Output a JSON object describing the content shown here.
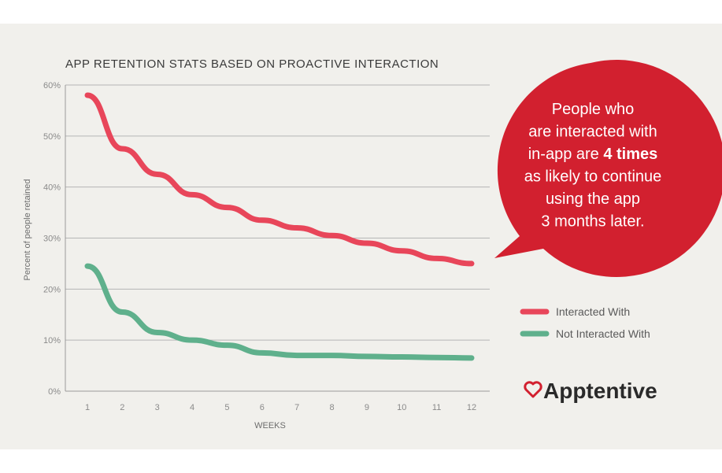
{
  "chart_data": {
    "type": "line",
    "title": "APP RETENTION STATS BASED ON PROACTIVE INTERACTION",
    "xlabel": "WEEKS",
    "ylabel": "Percent of people retained",
    "x": [
      1,
      2,
      3,
      4,
      5,
      6,
      7,
      8,
      9,
      10,
      11,
      12
    ],
    "ylim": [
      0,
      60
    ],
    "yticks": [
      "0%",
      "10%",
      "20%",
      "30%",
      "40%",
      "50%",
      "60%"
    ],
    "grid": true,
    "legend_position": "right",
    "series": [
      {
        "name": "Interacted With",
        "color": "#e8465a",
        "values": [
          58,
          47.5,
          42.5,
          38.5,
          36,
          33.5,
          32,
          30.5,
          29,
          27.5,
          26,
          25
        ]
      },
      {
        "name": "Not Interacted With",
        "color": "#5fb08c",
        "values": [
          24.5,
          15.5,
          11.5,
          10,
          9,
          7.5,
          7,
          7,
          6.8,
          6.7,
          6.6,
          6.5
        ]
      }
    ]
  },
  "callout": {
    "lines": [
      {
        "pre": "People who",
        "bold": "",
        "post": ""
      },
      {
        "pre": "are interacted with",
        "bold": "",
        "post": ""
      },
      {
        "pre": "in-app are ",
        "bold": "4 times",
        "post": ""
      },
      {
        "pre": "as likely to continue",
        "bold": "",
        "post": ""
      },
      {
        "pre": "using the app",
        "bold": "",
        "post": ""
      },
      {
        "pre": "3 months later.",
        "bold": "",
        "post": ""
      }
    ],
    "color": "#d2202f"
  },
  "brand": {
    "name": "Apptentive",
    "icon": "heart-outline-icon",
    "color": "#d2202f"
  }
}
